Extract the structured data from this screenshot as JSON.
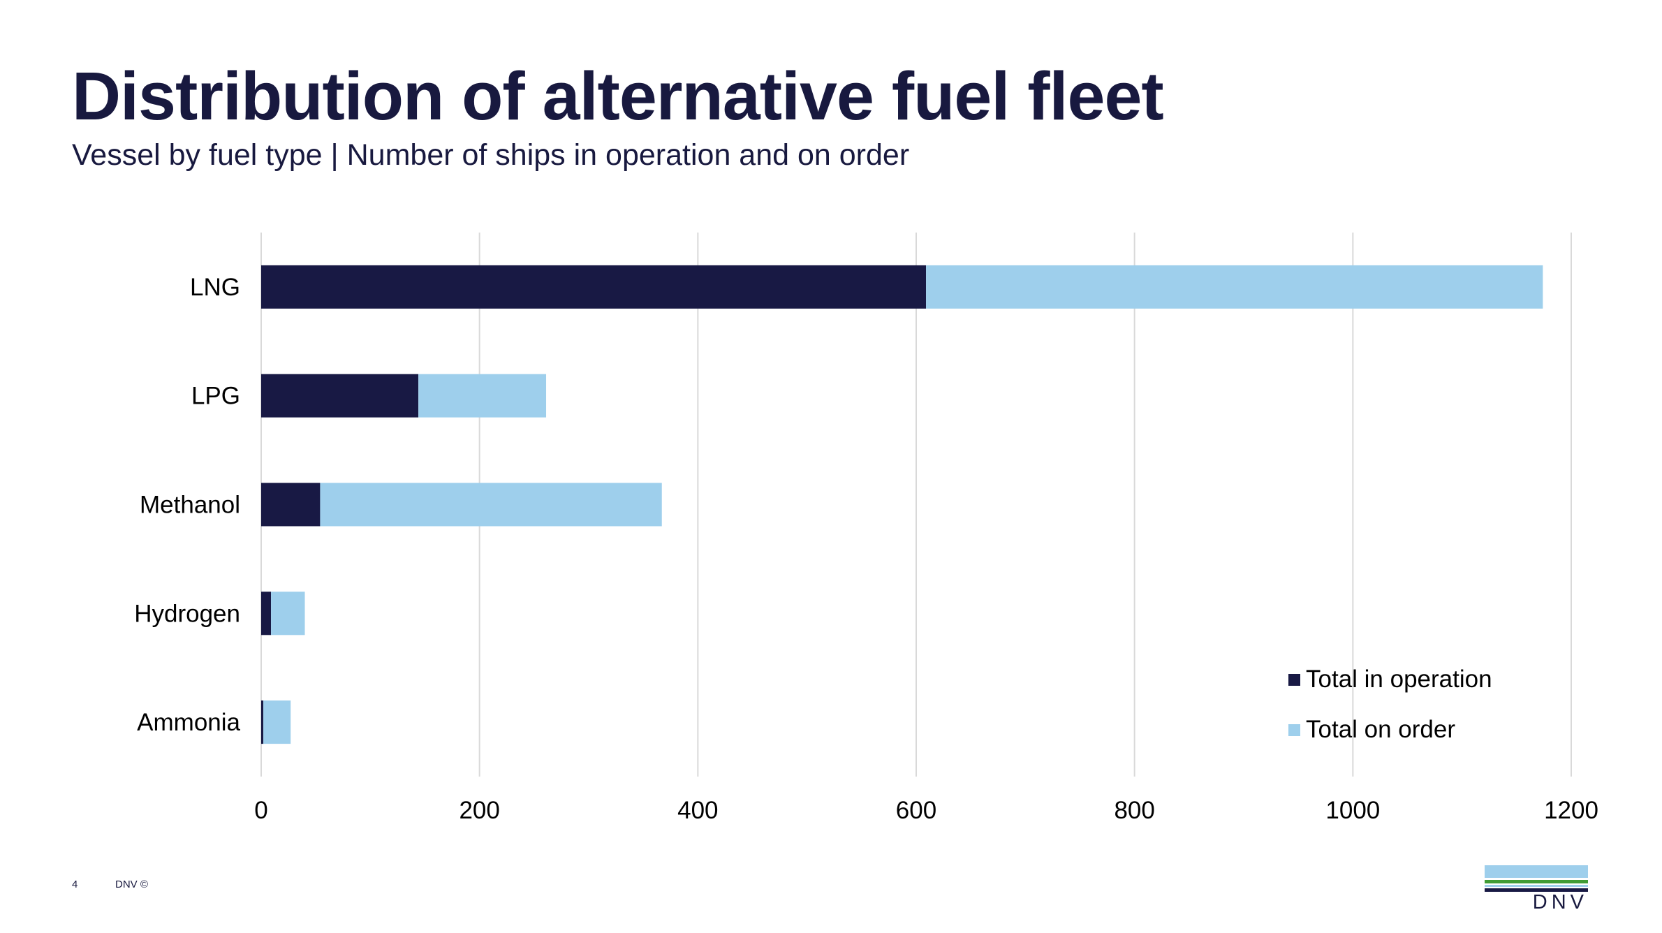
{
  "slide": {
    "title": "Distribution of alternative fuel fleet",
    "subtitle": "Vessel by fuel type | Number of ships in operation and on order",
    "page_number": "4",
    "copyright": "DNV ©",
    "logo_text": "DNV"
  },
  "colors": {
    "operation": "#181944",
    "order": "#9ecfec",
    "grid": "#d9d9d9",
    "text_dark": "#18193f",
    "logo_green": "#3f9c35"
  },
  "chart_data": {
    "type": "bar",
    "orientation": "horizontal",
    "stacked": true,
    "title": "Vessel by fuel type | Number of ships in operation and on order",
    "xlabel": "",
    "ylabel": "",
    "categories": [
      "LNG",
      "LPG",
      "Methanol",
      "Hydrogen",
      "Ammonia"
    ],
    "series": [
      {
        "name": "Total in operation",
        "values": [
          609,
          144,
          54,
          9,
          2
        ]
      },
      {
        "name": "Total on order",
        "values": [
          565,
          117,
          313,
          31,
          25
        ]
      }
    ],
    "xlim": [
      0,
      1200
    ],
    "xticks": [
      "0",
      "200",
      "400",
      "600",
      "800",
      "1000",
      "1200"
    ],
    "grid": true,
    "legend_position": "bottom-right"
  }
}
